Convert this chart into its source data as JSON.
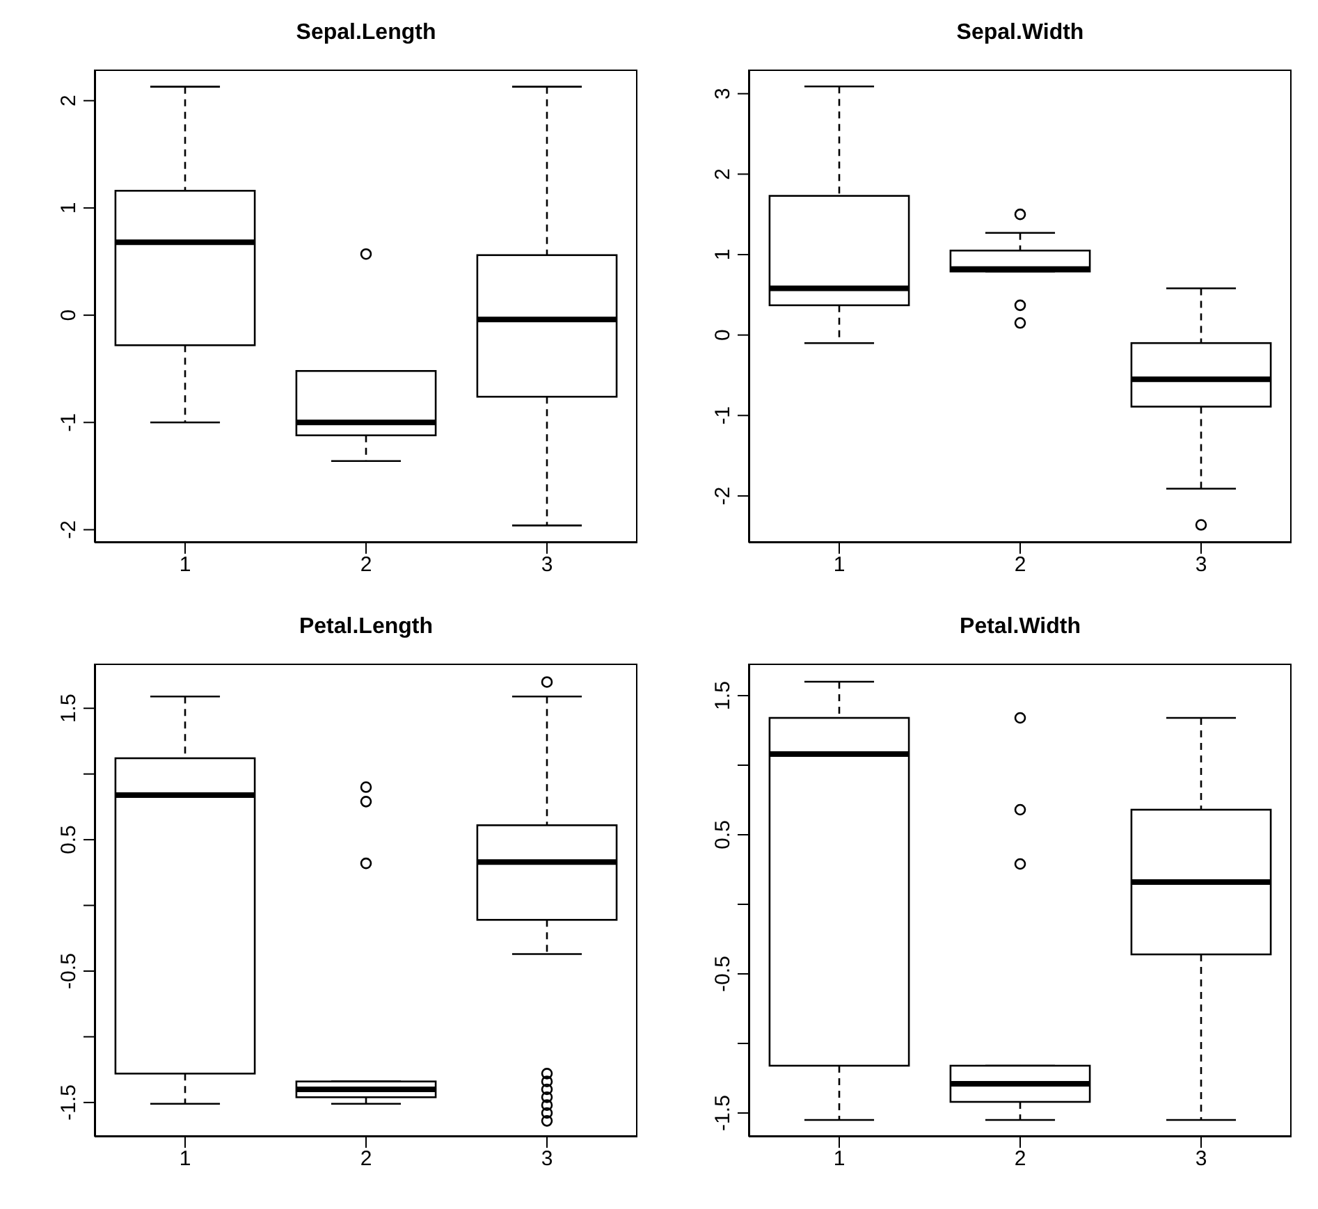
{
  "chart_data": [
    {
      "type": "box",
      "title": "Sepal.Length",
      "categories": [
        "1",
        "2",
        "3"
      ],
      "ylim": [
        -2.12,
        2.29
      ],
      "yticks": [
        -2,
        -1,
        0,
        1,
        2
      ],
      "boxes": [
        {
          "low": -1.0,
          "q1": -0.28,
          "median": 0.68,
          "q3": 1.16,
          "high": 2.13
        },
        {
          "low": -1.36,
          "q1": -1.12,
          "median": -1.0,
          "q3": -0.52,
          "high": -0.52,
          "outliers": [
            0.57
          ]
        },
        {
          "low": -1.96,
          "q1": -0.76,
          "median": -0.04,
          "q3": 0.56,
          "high": 2.13
        }
      ]
    },
    {
      "type": "box",
      "title": "Sepal.Width",
      "categories": [
        "1",
        "2",
        "3"
      ],
      "ylim": [
        -2.58,
        3.3
      ],
      "yticks": [
        -2,
        -1,
        0,
        1,
        2,
        3
      ],
      "boxes": [
        {
          "low": -0.1,
          "q1": 0.37,
          "median": 0.58,
          "q3": 1.73,
          "high": 3.09
        },
        {
          "low": 0.79,
          "q1": 0.79,
          "median": 0.82,
          "q3": 1.05,
          "high": 1.27,
          "outliers": [
            1.5,
            0.37,
            0.15
          ]
        },
        {
          "low": -1.91,
          "q1": -0.89,
          "median": -0.55,
          "q3": -0.1,
          "high": 0.58,
          "outliers": [
            -2.36
          ]
        }
      ]
    },
    {
      "type": "box",
      "title": "Petal.Length",
      "categories": [
        "1",
        "2",
        "3"
      ],
      "ylim": [
        -1.76,
        1.84
      ],
      "yticks": [
        -1.5,
        {
          "value": -1,
          "label": null
        },
        -0.5,
        {
          "value": 0,
          "label": null
        },
        0.5,
        {
          "value": 1,
          "label": null
        },
        1.5
      ],
      "boxes": [
        {
          "low": -1.51,
          "q1": -1.28,
          "median": 0.84,
          "q3": 1.12,
          "high": 1.59
        },
        {
          "low": -1.51,
          "q1": -1.46,
          "median": -1.4,
          "q3": -1.34,
          "high": -1.34,
          "outliers": [
            0.9,
            0.79,
            0.32
          ]
        },
        {
          "low": -0.37,
          "q1": -0.11,
          "median": 0.33,
          "q3": 0.61,
          "high": 1.59,
          "outliers": [
            1.7,
            -1.28,
            -1.34,
            -1.4,
            -1.46,
            -1.52,
            -1.58,
            -1.64
          ]
        }
      ]
    },
    {
      "type": "box",
      "title": "Petal.Width",
      "categories": [
        "1",
        "2",
        "3"
      ],
      "ylim": [
        -1.67,
        1.73
      ],
      "yticks": [
        -1.5,
        {
          "value": -1,
          "label": null
        },
        -0.5,
        {
          "value": 0,
          "label": null
        },
        0.5,
        {
          "value": 1,
          "label": null
        },
        1.5
      ],
      "boxes": [
        {
          "low": -1.55,
          "q1": -1.16,
          "median": 1.08,
          "q3": 1.34,
          "high": 1.6
        },
        {
          "low": -1.55,
          "q1": -1.42,
          "median": -1.29,
          "q3": -1.16,
          "high": -1.16,
          "outliers": [
            1.34,
            0.68,
            0.29
          ]
        },
        {
          "low": -1.55,
          "q1": -0.36,
          "median": 0.16,
          "q3": 0.68,
          "high": 1.34
        }
      ]
    }
  ]
}
